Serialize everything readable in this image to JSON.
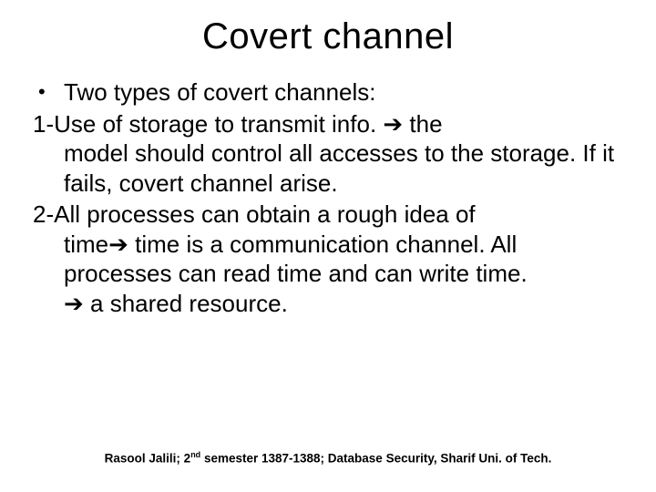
{
  "slide": {
    "title": "Covert channel",
    "background_color": "#ffffff",
    "text_color": "#000000",
    "title_fontsize": 40,
    "body_fontsize": 26,
    "footer_fontsize": 13.5,
    "bullet": {
      "marker": "•",
      "text": "Two types of covert channels:"
    },
    "items": [
      {
        "prefix": "1-",
        "line1_before": "Use of storage to transmit info.  ",
        "arrow1": "➔",
        "line1_after": " the",
        "cont": "model should control all accesses to the storage.  If it fails, covert channel arise."
      },
      {
        "prefix": "2-",
        "line1_before": "All processes can obtain a rough idea of",
        "cont1_before": "time",
        "arrow2": "➔",
        "cont1_after": " time is a communication channel.  All processes can read time and can write time.",
        "arrow3": "➔",
        "cont2": " a shared resource."
      }
    ],
    "footer_before": "Rasool Jalili; 2",
    "footer_sup": "nd",
    "footer_after": " semester 1387-1388; Database Security, Sharif Uni. of Tech."
  }
}
